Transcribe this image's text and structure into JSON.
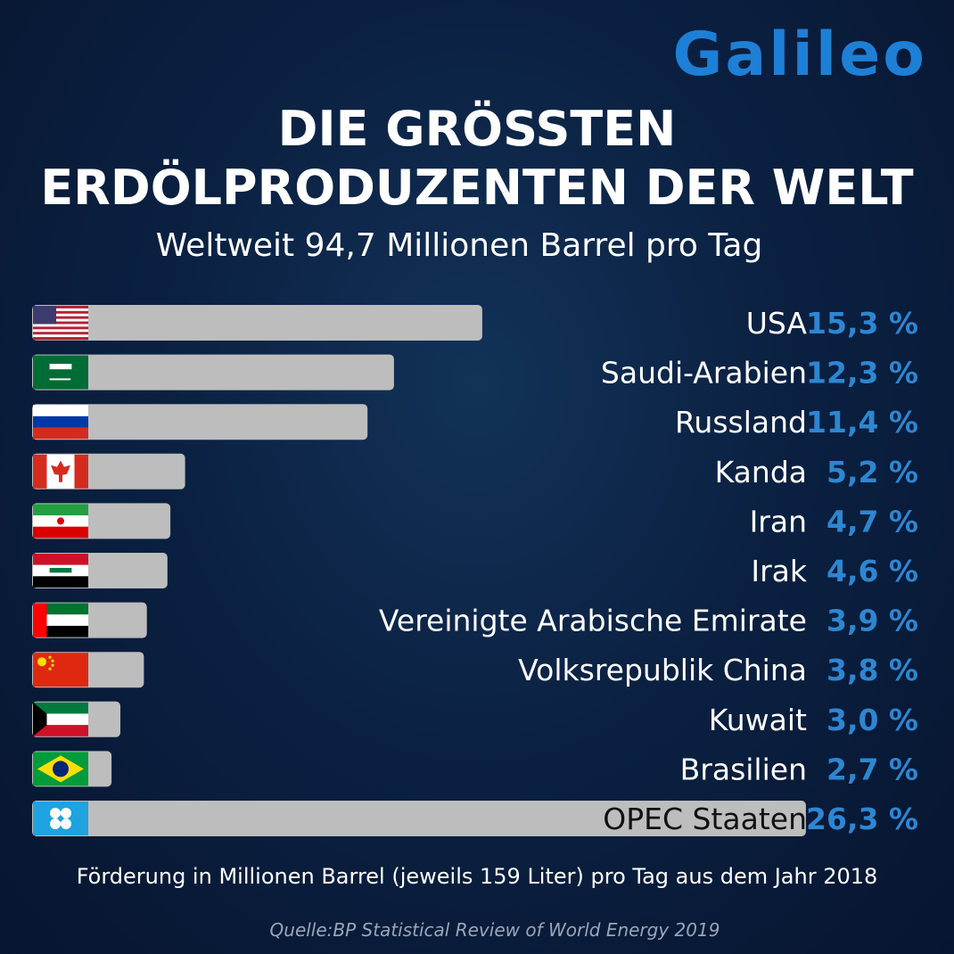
{
  "brand": {
    "logo_text": "Galileo",
    "logo_color": "#1e7fd6"
  },
  "header": {
    "title_line1": "DIE GRÖSSTEN",
    "title_line2": "ERDÖLPRODUZENTEN DER WELT",
    "subtitle": "Weltweit 94,7 Millionen Barrel pro Tag"
  },
  "chart_data": {
    "type": "bar",
    "orientation": "horizontal",
    "categories": [
      "USA",
      "Saudi-Arabien",
      "Russland",
      "Kanda",
      "Iran",
      "Irak",
      "Vereinigte Arabische Emirate",
      "Volksrepublik China",
      "Kuwait",
      "Brasilien",
      "OPEC Staaten"
    ],
    "value_labels": [
      "15,3 %",
      "12,3 %",
      "11,4 %",
      "5,2 %",
      "4,7 %",
      "4,6 %",
      "3,9 %",
      "3,8 %",
      "3,0 %",
      "2,7 %",
      "26,3 %"
    ],
    "values": [
      15.3,
      12.3,
      11.4,
      5.2,
      4.7,
      4.6,
      3.9,
      3.8,
      3.0,
      2.7,
      26.3
    ],
    "unit": "%",
    "flags": [
      "flag-usa-icon",
      "flag-saudi-arabia-icon",
      "flag-russia-icon",
      "flag-canada-icon",
      "flag-iran-icon",
      "flag-iraq-icon",
      "flag-uae-icon",
      "flag-china-icon",
      "flag-kuwait-icon",
      "flag-brazil-icon",
      "flag-opec-icon"
    ],
    "bar_color": "#bdbdbd",
    "value_color": "#2e86d1",
    "legend": "none",
    "grid": false
  },
  "footer": {
    "note": "Förderung in Millionen Barrel (jeweils 159 Liter) pro Tag aus dem Jahr 2018",
    "source": "Quelle:BP Statistical Review of World Energy 2019"
  }
}
